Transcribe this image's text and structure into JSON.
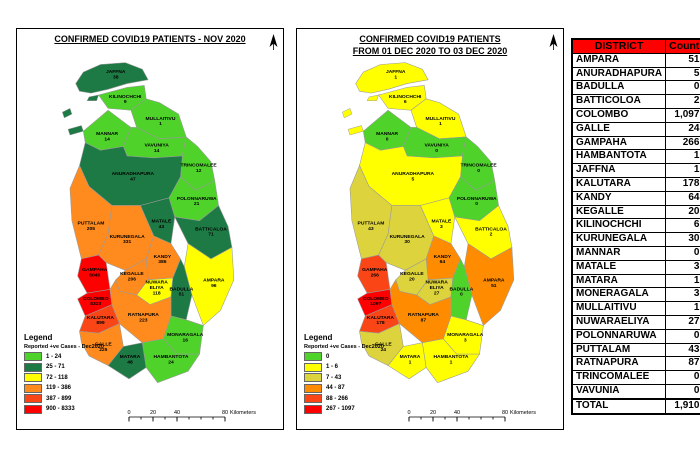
{
  "maps": [
    {
      "title_lines": [
        "CONFIRMED COVID19 PATIENTS - NOV 2020"
      ],
      "legend_title": "Legend",
      "legend_subtitle": "Reported +ve Cases - Dec2020",
      "legend_items": [
        {
          "color": "#4fd32b",
          "label": "1 - 24"
        },
        {
          "color": "#1e7a45",
          "label": "25 - 71"
        },
        {
          "color": "#ffff00",
          "label": "72 - 118"
        },
        {
          "color": "#ff8a1e",
          "label": "119 - 386"
        },
        {
          "color": "#fa4616",
          "label": "387 - 899"
        },
        {
          "color": "#fe0000",
          "label": "900 - 8333"
        }
      ],
      "scale_ticks": [
        "0",
        "20",
        "40",
        "80"
      ],
      "scale_unit": "Kilometers",
      "districts": {
        "jaffna": {
          "name": "JAFFNA",
          "value": "38",
          "color": "#1e7a45"
        },
        "kilinochchi": {
          "name": "KILINOCHCHI",
          "value": "9",
          "color": "#4fd32b"
        },
        "mullaitivu": {
          "name": "MULLAITIVU",
          "value": "1",
          "color": "#4fd32b"
        },
        "mannar": {
          "name": "MANNAR",
          "value": "14",
          "color": "#4fd32b"
        },
        "vavuniya": {
          "name": "VAVUNIYA",
          "value": "14",
          "color": "#4fd32b"
        },
        "trincomalee": {
          "name": "TRINCOMALEE",
          "value": "12",
          "color": "#4fd32b"
        },
        "anuradhapura": {
          "name": "ANURADHAPURA",
          "value": "47",
          "color": "#1e7a45"
        },
        "polonnaruwa": {
          "name": "POLONNARUWA",
          "value": "21",
          "color": "#4fd32b"
        },
        "puttalam": {
          "name": "PUTTALAM",
          "value": "205",
          "color": "#ff8a1e"
        },
        "kurunegala": {
          "name": "KURUNEGALA",
          "value": "331",
          "color": "#ff8a1e"
        },
        "matale": {
          "name": "MATALE",
          "value": "43",
          "color": "#1e7a45"
        },
        "batticaloa": {
          "name": "BATTICALOA",
          "value": "71",
          "color": "#1e7a45"
        },
        "ampara": {
          "name": "AMPARA",
          "value": "96",
          "color": "#ffff00"
        },
        "kandy": {
          "name": "KANDY",
          "value": "386",
          "color": "#ff8a1e"
        },
        "kegalle": {
          "name": "KEGALLE",
          "value": "206",
          "color": "#ff8a1e"
        },
        "nuwara_eliya": {
          "name": "NUWARA ELIYA",
          "value": "118",
          "color": "#ffff00"
        },
        "badulla": {
          "name": "BADULLA",
          "value": "51",
          "color": "#1e7a45"
        },
        "monaragala": {
          "name": "MONARAGALA",
          "value": "16",
          "color": "#4fd32b"
        },
        "gampaha": {
          "name": "GAMPAHA",
          "value": "6040",
          "color": "#fe0000"
        },
        "colombo": {
          "name": "COLOMBO",
          "value": "8333",
          "color": "#fe0000"
        },
        "kalutara": {
          "name": "KALUTARA",
          "value": "899",
          "color": "#fa4616"
        },
        "ratnapura": {
          "name": "RATNAPURA",
          "value": "223",
          "color": "#ff8a1e"
        },
        "galle": {
          "name": "GALLE",
          "value": "225",
          "color": "#ff8a1e"
        },
        "matara": {
          "name": "MATARA",
          "value": "48",
          "color": "#1e7a45"
        },
        "hambantota": {
          "name": "HAMBANTOTA",
          "value": "24",
          "color": "#4fd32b"
        }
      }
    },
    {
      "title_lines": [
        "CONFIRMED COVID19 PATIENTS",
        "FROM 01 DEC  2020 TO 03 DEC 2020"
      ],
      "legend_title": "Legend",
      "legend_subtitle": "Reported +ve Cases - Dec2020",
      "legend_items": [
        {
          "color": "#4fd32b",
          "label": "0"
        },
        {
          "color": "#ffff00",
          "label": "1 - 6"
        },
        {
          "color": "#ddd33d",
          "label": "7 - 43"
        },
        {
          "color": "#ff8c00",
          "label": "44 - 87"
        },
        {
          "color": "#fa4616",
          "label": "88 - 266"
        },
        {
          "color": "#fe0000",
          "label": "267 - 1097"
        }
      ],
      "scale_ticks": [
        "0",
        "20",
        "40",
        "80"
      ],
      "scale_unit": "Kilometers",
      "districts": {
        "jaffna": {
          "name": "JAFFNA",
          "value": "1",
          "color": "#ffff00"
        },
        "kilinochchi": {
          "name": "KILINOCHCHI",
          "value": "6",
          "color": "#ffff00"
        },
        "mullaitivu": {
          "name": "MULLAITIVU",
          "value": "1",
          "color": "#ffff00"
        },
        "mannar": {
          "name": "MANNAR",
          "value": "0",
          "color": "#4fd32b"
        },
        "vavuniya": {
          "name": "VAVUNIYA",
          "value": "0",
          "color": "#4fd32b"
        },
        "trincomalee": {
          "name": "TRINCOMALEE",
          "value": "0",
          "color": "#4fd32b"
        },
        "anuradhapura": {
          "name": "ANURADHAPURA",
          "value": "5",
          "color": "#ffff00"
        },
        "polonnaruwa": {
          "name": "POLONNARUWA",
          "value": "0",
          "color": "#4fd32b"
        },
        "puttalam": {
          "name": "PUTTALAM",
          "value": "43",
          "color": "#ddd33d"
        },
        "kurunegala": {
          "name": "KURUNEGALA",
          "value": "30",
          "color": "#ddd33d"
        },
        "matale": {
          "name": "MATALE",
          "value": "3",
          "color": "#ffff00"
        },
        "batticaloa": {
          "name": "BATTICALOA",
          "value": "2",
          "color": "#ffff00"
        },
        "ampara": {
          "name": "AMPARA",
          "value": "51",
          "color": "#ff8c00"
        },
        "kandy": {
          "name": "KANDY",
          "value": "64",
          "color": "#ff8c00"
        },
        "kegalle": {
          "name": "KEGALLE",
          "value": "20",
          "color": "#ddd33d"
        },
        "nuwara_eliya": {
          "name": "NUWARA ELIYA",
          "value": "27",
          "color": "#ddd33d"
        },
        "badulla": {
          "name": "BADULLA",
          "value": "0",
          "color": "#4fd32b"
        },
        "monaragala": {
          "name": "MONARAGALA",
          "value": "3",
          "color": "#ffff00"
        },
        "gampaha": {
          "name": "GAMPAHA",
          "value": "266",
          "color": "#fa4616"
        },
        "colombo": {
          "name": "COLOMBO",
          "value": "1097",
          "color": "#fe0000"
        },
        "kalutara": {
          "name": "KALUTARA",
          "value": "178",
          "color": "#fa4616"
        },
        "ratnapura": {
          "name": "RATNAPURA",
          "value": "87",
          "color": "#ff8c00"
        },
        "galle": {
          "name": "GALLE",
          "value": "24",
          "color": "#ddd33d"
        },
        "matara": {
          "name": "MATARA",
          "value": "1",
          "color": "#ffff00"
        },
        "hambantota": {
          "name": "HAMBANTOTA",
          "value": "1",
          "color": "#ffff00"
        }
      }
    }
  ],
  "table": {
    "header": [
      "DISTRICT",
      "Count"
    ],
    "header_bg": "#fe0000",
    "rows": [
      [
        "AMPARA",
        "51"
      ],
      [
        "ANURADHAPURA",
        "5"
      ],
      [
        "BADULLA",
        "0"
      ],
      [
        "BATTICOLOA",
        "2"
      ],
      [
        "COLOMBO",
        "1,097"
      ],
      [
        "GALLE",
        "24"
      ],
      [
        "GAMPAHA",
        "266"
      ],
      [
        "HAMBANTOTA",
        "1"
      ],
      [
        "JAFFNA",
        "1"
      ],
      [
        "KALUTARA",
        "178"
      ],
      [
        "KANDY",
        "64"
      ],
      [
        "KEGALLE",
        "20"
      ],
      [
        "KILINOCHCHI",
        "6"
      ],
      [
        "KURUNEGALA",
        "30"
      ],
      [
        "MANNAR",
        "0"
      ],
      [
        "MATALE",
        "3"
      ],
      [
        "MATARA",
        "1"
      ],
      [
        "MONERAGALA",
        "3"
      ],
      [
        "MULLAITIVU",
        "1"
      ],
      [
        "NUWARAELIYA",
        "27"
      ],
      [
        "POLONNARUWA",
        "0"
      ],
      [
        "PUTTALAM",
        "43"
      ],
      [
        "RATNAPURA",
        "87"
      ],
      [
        "TRINCOMALEE",
        "0"
      ],
      [
        "VAVUNIA",
        "0"
      ]
    ],
    "total_row": [
      "TOTAL",
      "1,910"
    ]
  }
}
